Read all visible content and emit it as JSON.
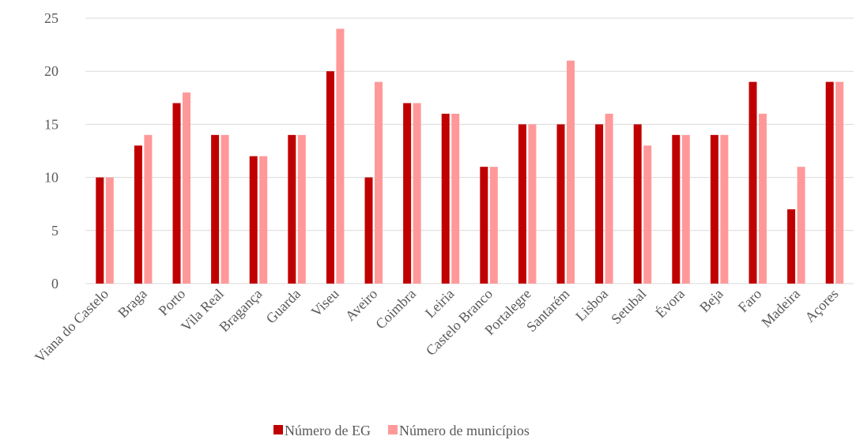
{
  "chart_data": {
    "type": "bar",
    "categories": [
      "Viana do Castelo",
      "Braga",
      "Porto",
      "Vila Real",
      "Bragança",
      "Guarda",
      "Viseu",
      "Aveiro",
      "Coimbra",
      "Leiria",
      "Castelo Branco",
      "Portalegre",
      "Santarém",
      "Lisboa",
      "Setubal",
      "Évora",
      "Beja",
      "Faro",
      "Madeira",
      "Açores"
    ],
    "series": [
      {
        "name": "Número de EG",
        "color": "#c00000",
        "values": [
          10,
          13,
          17,
          14,
          12,
          14,
          20,
          10,
          17,
          16,
          11,
          15,
          15,
          15,
          15,
          14,
          14,
          19,
          7,
          19
        ]
      },
      {
        "name": "Número de municípios",
        "color": "#ff9999",
        "values": [
          10,
          14,
          18,
          14,
          12,
          14,
          24,
          19,
          17,
          16,
          11,
          15,
          21,
          16,
          13,
          14,
          14,
          16,
          11,
          19
        ]
      }
    ],
    "ylim": [
      0,
      25
    ],
    "yticks": [
      0,
      5,
      10,
      15,
      20,
      25
    ],
    "grid": true,
    "legend": "bottom"
  }
}
